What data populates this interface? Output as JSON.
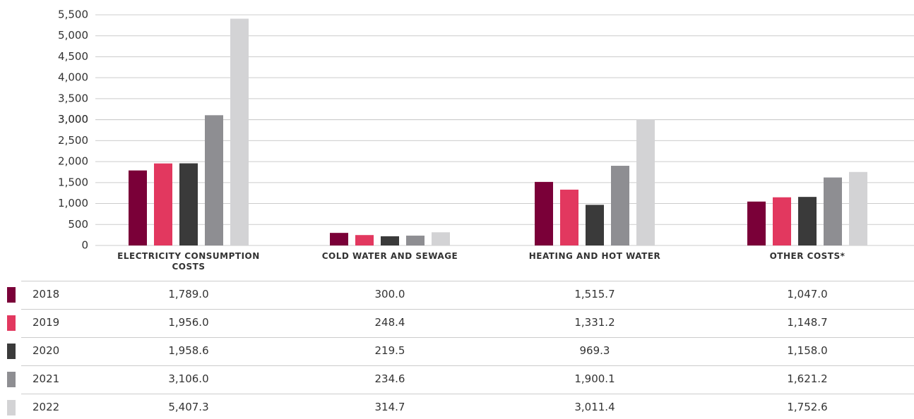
{
  "chart_data": {
    "type": "bar",
    "categories": [
      "ELECTRICITY CONSUMPTION COSTS",
      "COLD WATER AND SEWAGE",
      "HEATING AND HOT WATER",
      "OTHER COSTS*"
    ],
    "series": [
      {
        "name": "2018",
        "color": "#7a0038",
        "values": [
          1789.0,
          300.0,
          1515.7,
          1047.0
        ],
        "value_labels": [
          "1,789.0",
          "300.0",
          "1,515.7",
          "1,047.0"
        ]
      },
      {
        "name": "2019",
        "color": "#e2385f",
        "values": [
          1956.0,
          248.4,
          1331.2,
          1148.7
        ],
        "value_labels": [
          "1,956.0",
          "248.4",
          "1,331.2",
          "1,148.7"
        ]
      },
      {
        "name": "2020",
        "color": "#3a3a3a",
        "values": [
          1958.6,
          219.5,
          969.3,
          1158.0
        ],
        "value_labels": [
          "1,958.6",
          "219.5",
          "969.3",
          "1,158.0"
        ]
      },
      {
        "name": "2021",
        "color": "#8e8e92",
        "values": [
          3106.0,
          234.6,
          1900.1,
          1621.2
        ],
        "value_labels": [
          "3,106.0",
          "234.6",
          "1,900.1",
          "1,621.2"
        ]
      },
      {
        "name": "2022",
        "color": "#d3d3d5",
        "values": [
          5407.3,
          314.7,
          3011.4,
          1752.6
        ],
        "value_labels": [
          "5,407.3",
          "314.7",
          "3,011.4",
          "1,752.6"
        ]
      }
    ],
    "ylim": [
      0,
      5500
    ],
    "yticks": [
      0,
      500,
      {
        "value": 1000,
        "label": "1,000"
      },
      {
        "value": 1500,
        "label": "1,500"
      },
      {
        "value": 2000,
        "label": "2,000"
      },
      {
        "value": 2500,
        "label": "2,500"
      },
      {
        "value": 3000,
        "label": "3,000"
      },
      {
        "value": 3000,
        "label": "3,000"
      },
      {
        "value": 3500,
        "label": "3,500"
      },
      {
        "value": 4000,
        "label": "4,000"
      },
      {
        "value": 4500,
        "label": "4,500"
      },
      {
        "value": 5000,
        "label": "5,000"
      },
      {
        "value": 5500,
        "label": "5,500"
      }
    ],
    "grid": true
  }
}
